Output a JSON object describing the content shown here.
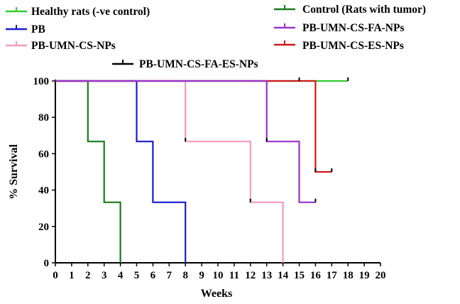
{
  "chart_data": {
    "type": "line",
    "step": true,
    "xlabel": "Weeks",
    "ylabel": "% Survival",
    "xlim": [
      0,
      20
    ],
    "ylim": [
      0,
      100
    ],
    "x_ticks": [
      0,
      1,
      2,
      3,
      4,
      5,
      6,
      7,
      8,
      9,
      10,
      11,
      12,
      13,
      14,
      15,
      16,
      17,
      18,
      19,
      20
    ],
    "y_ticks": [
      0,
      20,
      40,
      60,
      80,
      100
    ],
    "grid": false,
    "legend": "top",
    "series": [
      {
        "key": "healthy",
        "name": "Healthy rats (-ve control)",
        "color": "#33cc33",
        "points": [
          [
            0,
            100
          ],
          [
            18,
            100
          ]
        ],
        "censored": [
          [
            15,
            100
          ],
          [
            18,
            100
          ]
        ]
      },
      {
        "key": "control",
        "name": "Control (Rats with tumor)",
        "color": "#1a7a1a",
        "points": [
          [
            0,
            100
          ],
          [
            2,
            100
          ],
          [
            2,
            66.7
          ],
          [
            3,
            66.7
          ],
          [
            3,
            33.3
          ],
          [
            4,
            33.3
          ],
          [
            4,
            0
          ]
        ],
        "censored": []
      },
      {
        "key": "pb",
        "name": "PB",
        "color": "#1a1acc",
        "points": [
          [
            0,
            100
          ],
          [
            5,
            100
          ],
          [
            5,
            66.7
          ],
          [
            6,
            66.7
          ],
          [
            6,
            33.3
          ],
          [
            8,
            33.3
          ],
          [
            8,
            0
          ]
        ],
        "censored": []
      },
      {
        "key": "pb_umn_cs",
        "name": "PB-UMN-CS-NPs",
        "color": "#f29bc1",
        "points": [
          [
            0,
            100
          ],
          [
            8,
            100
          ],
          [
            8,
            66.7
          ],
          [
            12,
            66.7
          ],
          [
            12,
            33.3
          ],
          [
            14,
            33.3
          ],
          [
            14,
            0
          ]
        ],
        "censored": [
          [
            8,
            66.7
          ],
          [
            12,
            33.3
          ]
        ]
      },
      {
        "key": "pb_umn_cs_fa",
        "name": "PB-UMN-CS-FA-NPs",
        "color": "#9933cc",
        "points": [
          [
            0,
            100
          ],
          [
            13,
            100
          ],
          [
            13,
            66.7
          ],
          [
            15,
            66.7
          ],
          [
            15,
            33.3
          ],
          [
            16,
            33.3
          ]
        ],
        "censored": [
          [
            13,
            66.7
          ],
          [
            16,
            33.3
          ]
        ]
      },
      {
        "key": "pb_umn_cs_es",
        "name": "PB-UMN-CS-ES-NPs",
        "color": "#cc1a1a",
        "points": [
          [
            0,
            100
          ],
          [
            16,
            100
          ],
          [
            16,
            50
          ],
          [
            17,
            50
          ]
        ],
        "censored": [
          [
            16,
            50
          ],
          [
            17,
            50
          ]
        ]
      },
      {
        "key": "pb_umn_cs_fa_es",
        "name": "PB-UMN-CS-FA-ES-NPs",
        "color": "#000000",
        "points": [],
        "censored": []
      }
    ]
  }
}
